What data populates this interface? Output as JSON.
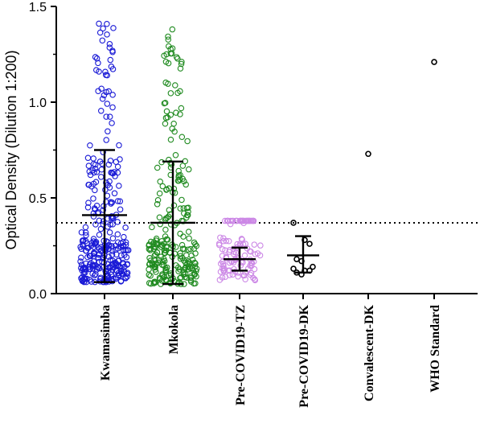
{
  "chart_data": {
    "type": "scatter",
    "title": "",
    "xlabel": "",
    "ylabel": "Optical Density (Dilution 1:200)",
    "ylim": [
      0.0,
      1.5
    ],
    "yticks": [
      "0.0",
      "0.5",
      "1.0",
      "1.5"
    ],
    "grid": false,
    "legend": "none",
    "categories": [
      "Kwamasimba",
      "Mkokola",
      "Pre-COVID19-TZ",
      "Pre-COVID19-DK",
      "Convalescent-DK",
      "WHO Standard"
    ],
    "cutoff": 0.37,
    "series": [
      {
        "category": "Kwamasimba",
        "color": "#1a1ad6",
        "mean": 0.41,
        "error_low": 0.06,
        "error_high": 0.75,
        "n": 320,
        "min": 0.06,
        "max": 1.41
      },
      {
        "category": "Mkokola",
        "color": "#1f8a1f",
        "mean": 0.37,
        "error_low": 0.05,
        "error_high": 0.69,
        "n": 260,
        "min": 0.05,
        "max": 1.38
      },
      {
        "category": "Pre-COVID19-TZ",
        "color": "#cc88e6",
        "mean": 0.18,
        "error_low": 0.12,
        "error_high": 0.24,
        "n": 120,
        "min": 0.07,
        "max": 0.38
      },
      {
        "category": "Pre-COVID19-DK",
        "color": "#000000",
        "mean": 0.2,
        "error_low": 0.11,
        "error_high": 0.3,
        "points": [
          0.37,
          0.28,
          0.26,
          0.18,
          0.17,
          0.14,
          0.13,
          0.12,
          0.12,
          0.11,
          0.1
        ]
      },
      {
        "category": "Convalescent-DK",
        "color": "#000000",
        "points": [
          0.73
        ]
      },
      {
        "category": "WHO Standard",
        "color": "#000000",
        "points": [
          1.21
        ]
      }
    ]
  }
}
